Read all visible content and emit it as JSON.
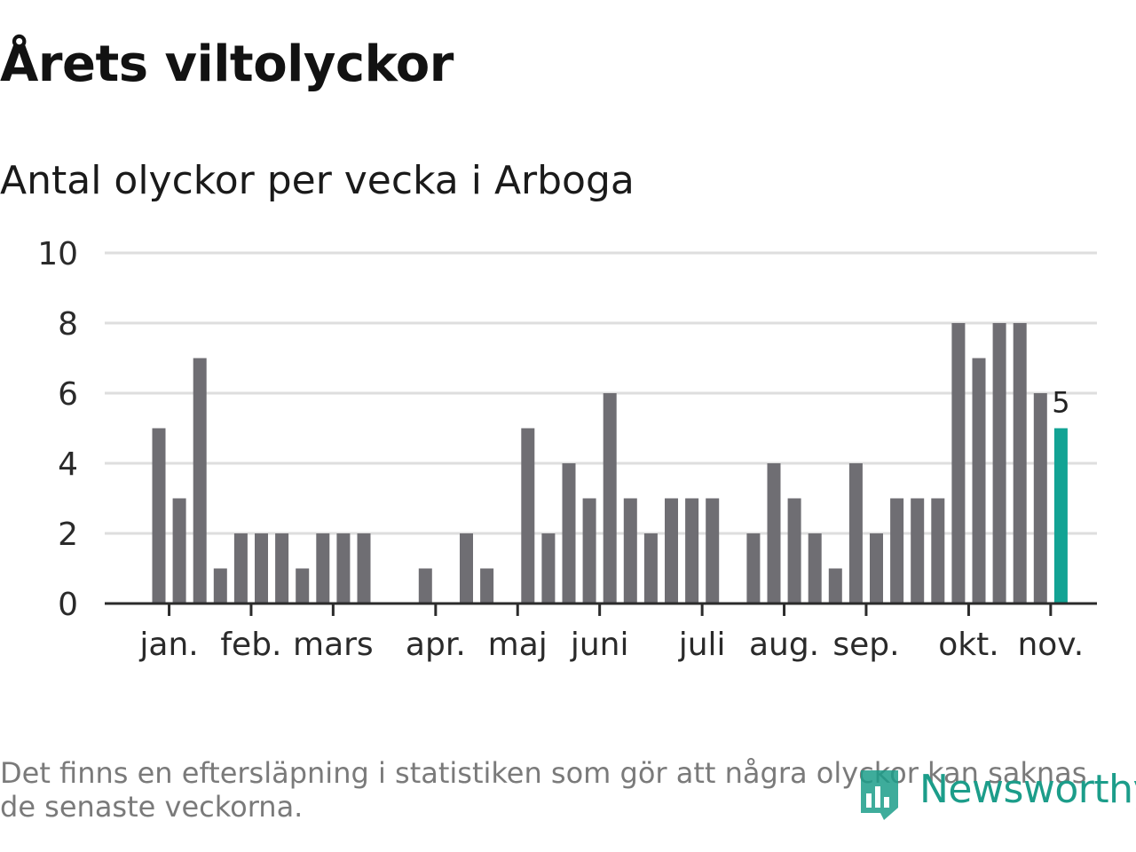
{
  "title": "Årets viltolyckor",
  "subtitle": "Antal olyckor per vecka i Arboga",
  "footnote": "Det finns en eftersläpning i statistiken som gör att några olyckor kan saknas de senaste veckorna.",
  "logo": {
    "text": "Newsworthy",
    "icon": "newsworthy-logo-icon",
    "color": "#1c9d8a"
  },
  "chart_data": {
    "type": "bar",
    "x": [
      1,
      2,
      3,
      4,
      5,
      6,
      7,
      8,
      9,
      10,
      11,
      12,
      13,
      14,
      15,
      16,
      17,
      18,
      19,
      20,
      21,
      22,
      23,
      24,
      25,
      26,
      27,
      28,
      29,
      30,
      31,
      32,
      33,
      34,
      35,
      36,
      37,
      38,
      39,
      40,
      41,
      42,
      43,
      44,
      45,
      46
    ],
    "values": [
      5,
      3,
      7,
      1,
      2,
      2,
      2,
      1,
      2,
      2,
      2,
      0,
      0,
      1,
      0,
      2,
      1,
      0,
      5,
      2,
      4,
      3,
      6,
      3,
      2,
      3,
      3,
      3,
      0,
      2,
      4,
      3,
      2,
      1,
      4,
      2,
      3,
      3,
      3,
      8,
      7,
      8,
      8,
      6,
      5,
      0
    ],
    "ylim": [
      0,
      10
    ],
    "yticks": [
      0,
      2,
      4,
      6,
      8,
      10
    ],
    "month_labels": [
      {
        "label": "jan.",
        "pos": 1.5
      },
      {
        "label": "feb.",
        "pos": 5.5
      },
      {
        "label": "mars",
        "pos": 9.5
      },
      {
        "label": "apr.",
        "pos": 14.5
      },
      {
        "label": "maj",
        "pos": 18.5
      },
      {
        "label": "juni",
        "pos": 22.5
      },
      {
        "label": "juli",
        "pos": 27.5
      },
      {
        "label": "aug.",
        "pos": 31.5
      },
      {
        "label": "sep.",
        "pos": 35.5
      },
      {
        "label": "okt.",
        "pos": 40.5
      },
      {
        "label": "nov.",
        "pos": 44.5
      }
    ],
    "highlight_index": 44,
    "highlight_label": "5",
    "colors": {
      "bar": "#6f6e73",
      "highlight": "#12a394",
      "grid": "#dedede",
      "axis": "#2b2b2b"
    },
    "grid": true,
    "legend": "none"
  }
}
